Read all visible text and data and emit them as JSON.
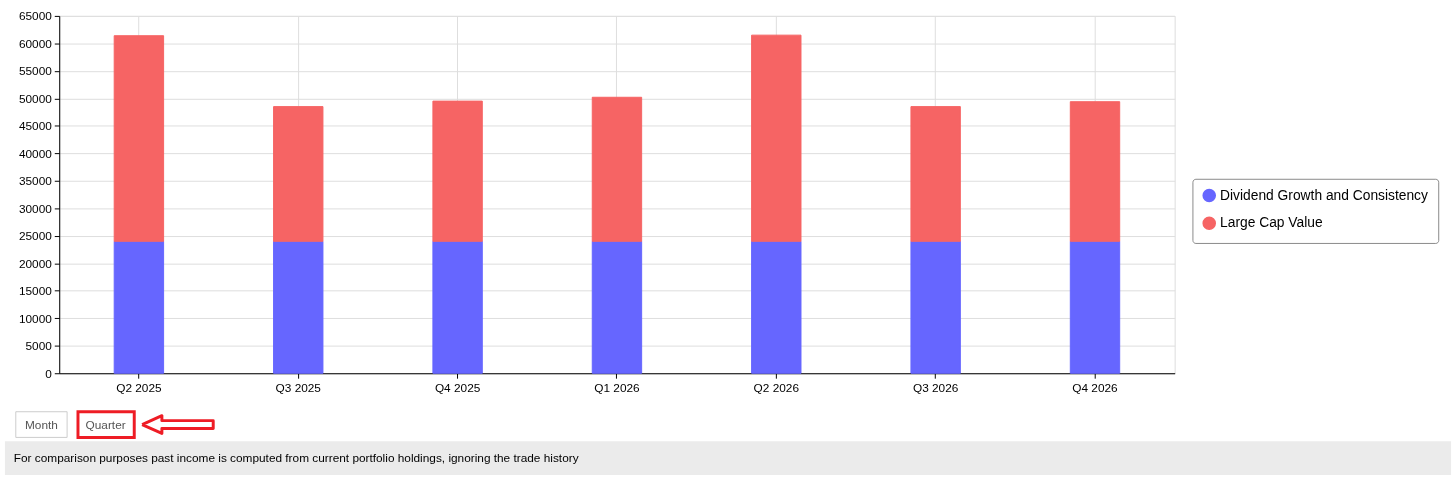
{
  "chart_data": {
    "type": "bar",
    "stacked": true,
    "categories": [
      "Q2 2025",
      "Q3 2025",
      "Q4 2025",
      "Q1 2026",
      "Q2 2026",
      "Q3 2026",
      "Q4 2026"
    ],
    "series": [
      {
        "name": "Dividend Growth and Consistency",
        "color": "#6666ff",
        "values": [
          24000,
          24000,
          24000,
          24000,
          24000,
          24000,
          24000
        ]
      },
      {
        "name": "Large Cap Value",
        "color": "#f66464",
        "values": [
          37400,
          24500,
          25500,
          26200,
          37500,
          24500,
          25400
        ]
      }
    ],
    "ylim": [
      0,
      65000
    ],
    "yticks": [
      0,
      5000,
      10000,
      15000,
      20000,
      25000,
      30000,
      35000,
      40000,
      45000,
      50000,
      55000,
      60000,
      65000
    ],
    "grid": true,
    "legend": "right",
    "annotations": [
      "Month",
      "Quarter",
      "For comparison purposes past income is computed from current portfolio holdings, ignoring the trade history"
    ]
  }
}
